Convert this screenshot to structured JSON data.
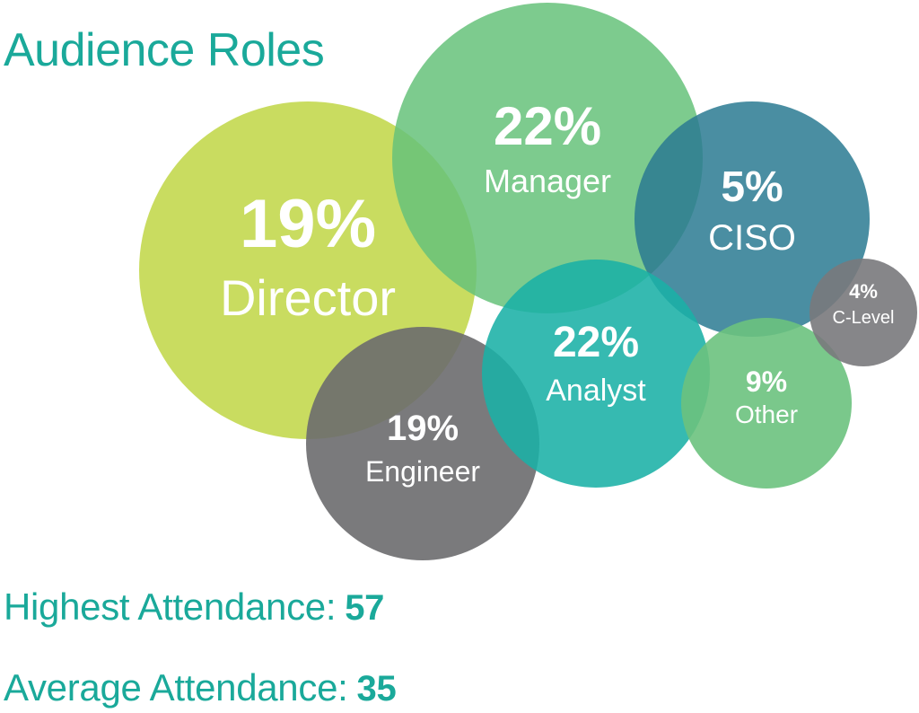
{
  "title": "Audience Roles",
  "colors": {
    "title": "#1aa99a",
    "stats": "#1aa99a",
    "label": "#ffffff"
  },
  "chart_data": {
    "type": "bubble",
    "title": "Audience Roles",
    "unit": "%",
    "series": [
      {
        "category": "Director",
        "value": 19,
        "color": "#c3d84f"
      },
      {
        "category": "Manager",
        "value": 22,
        "color": "#66c27a"
      },
      {
        "category": "CISO",
        "value": 5,
        "color": "#2a7a92"
      },
      {
        "category": "Engineer",
        "value": 19,
        "color": "#6b6b6e"
      },
      {
        "category": "Analyst",
        "value": 22,
        "color": "#1ab0a6"
      },
      {
        "category": "Other",
        "value": 9,
        "color": "#6cc27e"
      },
      {
        "category": "C-Level",
        "value": 4,
        "color": "#79797c"
      }
    ]
  },
  "stats": {
    "highest_label": "Highest Attendance:",
    "highest_value": "57",
    "average_label": "Average Attendance:",
    "average_value": "35"
  }
}
